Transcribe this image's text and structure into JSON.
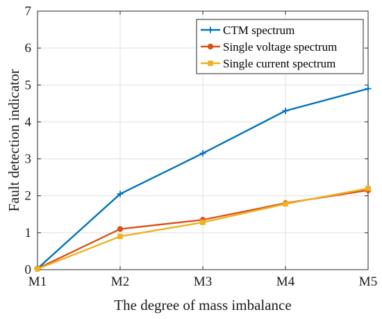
{
  "chart_data": {
    "type": "line",
    "categories": [
      "M1",
      "M2",
      "M3",
      "M4",
      "M5"
    ],
    "xlabel": "The degree of mass imbalance",
    "ylabel": "Fault detection indicator",
    "ylim": [
      0,
      7
    ],
    "yticks": [
      "0",
      "1",
      "2",
      "3",
      "4",
      "5",
      "6",
      "7"
    ],
    "grid": true,
    "legend_position": "top-right",
    "series": [
      {
        "name": "CTM spectrum",
        "color": "#0072BD",
        "marker": "plus",
        "values": [
          0.03,
          2.05,
          3.15,
          4.3,
          4.9
        ]
      },
      {
        "name": "Single voltage spectrum",
        "color": "#D95319",
        "marker": "circle",
        "values": [
          0.03,
          1.1,
          1.35,
          1.8,
          2.15
        ]
      },
      {
        "name": "Single current spectrum",
        "color": "#EDB120",
        "marker": "square",
        "values": [
          0.02,
          0.9,
          1.28,
          1.78,
          2.2
        ]
      }
    ]
  }
}
